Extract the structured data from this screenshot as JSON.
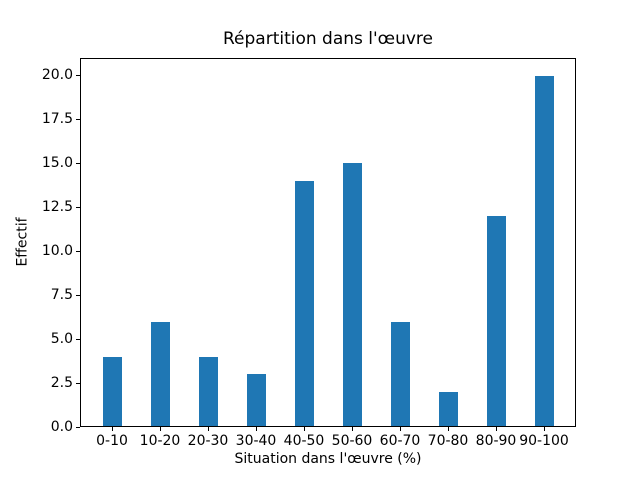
{
  "chart_data": {
    "type": "bar",
    "title": "Répartition dans l'œuvre",
    "xlabel": "Situation dans l'œuvre (%)",
    "ylabel": "Effectif",
    "categories": [
      "0-10",
      "10-20",
      "20-30",
      "30-40",
      "40-50",
      "50-60",
      "60-70",
      "70-80",
      "80-90",
      "90-100"
    ],
    "values": [
      4,
      6,
      4,
      3,
      14,
      15,
      6,
      2,
      12,
      20
    ],
    "yticks": [
      0.0,
      2.5,
      5.0,
      7.5,
      10.0,
      12.5,
      15.0,
      17.5,
      20.0
    ],
    "ytick_labels": [
      "0.0",
      "2.5",
      "5.0",
      "7.5",
      "10.0",
      "12.5",
      "15.0",
      "17.5",
      "20.0"
    ],
    "ylim": [
      0,
      21
    ],
    "bar_color": "#1f77b4",
    "text_color": "#000000",
    "background_color": "#ffffff",
    "grid": false,
    "legend": "none"
  }
}
